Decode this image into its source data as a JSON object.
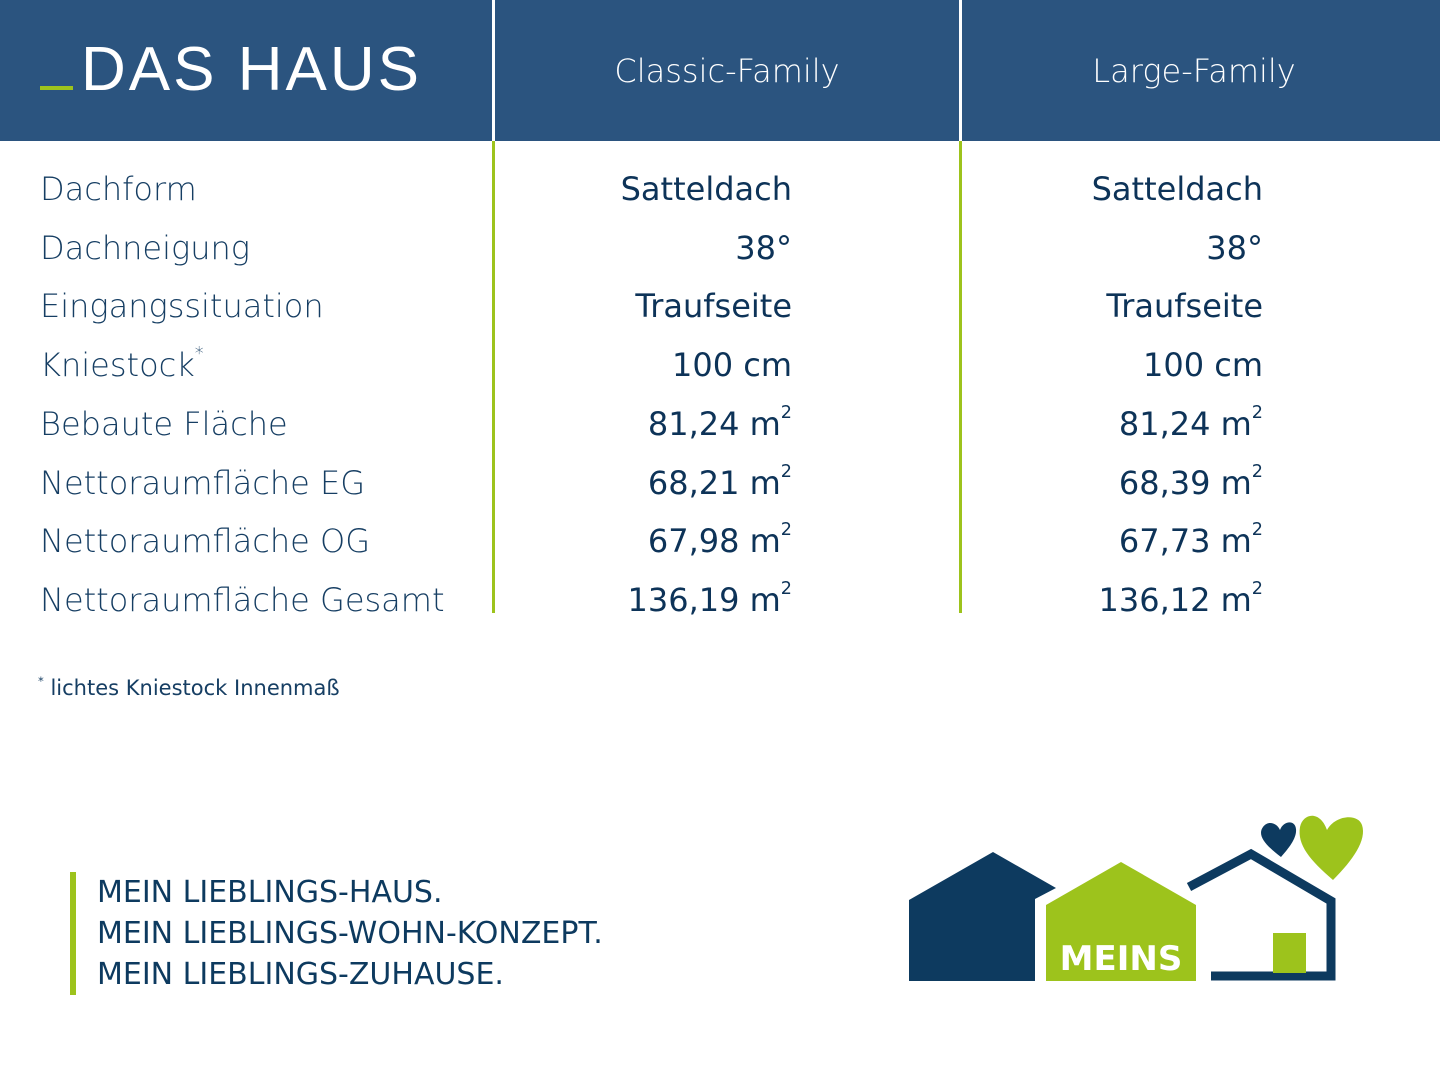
{
  "header": {
    "title": "DAS HAUS",
    "columns": [
      "Classic-Family",
      "Large-Family"
    ]
  },
  "rows": [
    {
      "label": "Dachform",
      "mark": "",
      "v1": "Satteldach",
      "u1": "",
      "v2": "Satteldach",
      "u2": ""
    },
    {
      "label": "Dachneigung",
      "mark": "",
      "v1": "38°",
      "u1": "",
      "v2": "38°",
      "u2": ""
    },
    {
      "label": "Eingangssituation",
      "mark": "",
      "v1": "Traufseite",
      "u1": "",
      "v2": "Traufseite",
      "u2": ""
    },
    {
      "label": "Kniestock",
      "mark": "*",
      "v1": "100 cm",
      "u1": "",
      "v2": "100 cm",
      "u2": ""
    },
    {
      "label": "Bebaute Fläche",
      "mark": "",
      "v1": "81,24 m",
      "u1": "2",
      "v2": "81,24 m",
      "u2": "2"
    },
    {
      "label": "Nettoraumfläche EG",
      "mark": "",
      "v1": "68,21 m",
      "u1": "2",
      "v2": "68,39 m",
      "u2": "2"
    },
    {
      "label": "Nettoraumfläche OG",
      "mark": "",
      "v1": "67,98 m",
      "u1": "2",
      "v2": "67,73 m",
      "u2": "2"
    },
    {
      "label": "Nettoraumfläche Gesamt",
      "mark": "",
      "v1": "136,19 m",
      "u1": "2",
      "v2": "136,12 m",
      "u2": "2"
    }
  ],
  "footnote": {
    "mark": "*",
    "text": "lichtes Kniestock Innenmaß"
  },
  "slogan": [
    "MEIN LIEBLINGS-HAUS.",
    "MEIN LIEBLINGS-WOHN-KONZEPT.",
    "MEIN LIEBLINGS-ZUHAUSE."
  ],
  "logo": {
    "text": "MEINS"
  },
  "colors": {
    "header": "#2b547f",
    "accent_green": "#9dc31c",
    "navy": "#0d3a5f"
  }
}
